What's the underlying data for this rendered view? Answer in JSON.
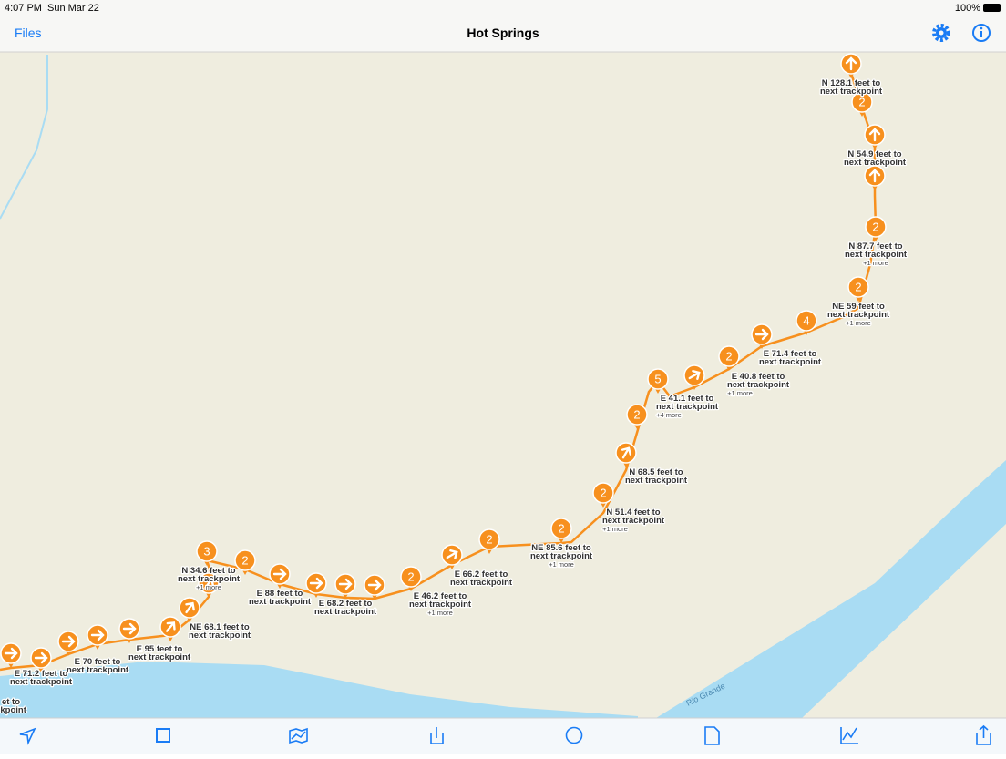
{
  "status_bar": {
    "time": "4:07 PM",
    "date": "Sun Mar 22",
    "battery": "100%"
  },
  "nav_bar": {
    "back": "Files",
    "title": "Hot Springs"
  },
  "map": {
    "water_label": "Rio Grande",
    "clusters": [
      2,
      2,
      2,
      4,
      2,
      5,
      2,
      2,
      2,
      2,
      2,
      2,
      3
    ],
    "trackpoint_labels": [
      {
        "lines": [
          "N 128.1 feet to",
          "next trackpoint"
        ]
      },
      {
        "lines": [
          "N 54.9 feet to",
          "next trackpoint"
        ]
      },
      {
        "lines": [
          "N 87.7 feet to",
          "next trackpoint"
        ],
        "more": "+1 more"
      },
      {
        "lines": [
          "NE 59 feet to",
          "next trackpoint"
        ],
        "more": "+1 more"
      },
      {
        "lines": [
          "E 71.4 feet to",
          "next trackpoint"
        ]
      },
      {
        "lines": [
          "E 40.8 feet to",
          "next trackpoint"
        ],
        "more": "+1 more"
      },
      {
        "lines": [
          "E 41.1 feet to",
          "next trackpoint"
        ],
        "more": "+4 more"
      },
      {
        "lines": [
          "N 68.5 feet to",
          "next trackpoint"
        ]
      },
      {
        "lines": [
          "N 51.4 feet to",
          "next trackpoint"
        ],
        "more": "+1 more"
      },
      {
        "lines": [
          "NE 85.6 feet to",
          "next trackpoint"
        ],
        "more": "+1 more"
      },
      {
        "lines": [
          "E 66.2 feet to",
          "next trackpoint"
        ]
      },
      {
        "lines": [
          "E 46.2 feet to",
          "next trackpoint"
        ],
        "more": "+1 more"
      },
      {
        "lines": [
          "E 68.2 feet to",
          "next trackpoint"
        ]
      },
      {
        "lines": [
          "E 88 feet to",
          "next trackpoint"
        ]
      },
      {
        "lines": [
          "N 34.6 feet to",
          "next trackpoint"
        ],
        "more": "+1 more"
      },
      {
        "lines": [
          "NE 68.1 feet to",
          "next trackpoint"
        ]
      },
      {
        "lines": [
          "E 95 feet to",
          "next trackpoint"
        ]
      },
      {
        "lines": [
          "E 70 feet to",
          "next trackpoint"
        ]
      },
      {
        "lines": [
          "E 71.2 feet to",
          "next trackpoint"
        ]
      },
      {
        "lines": [
          "et to",
          "ckpoint"
        ]
      }
    ]
  }
}
